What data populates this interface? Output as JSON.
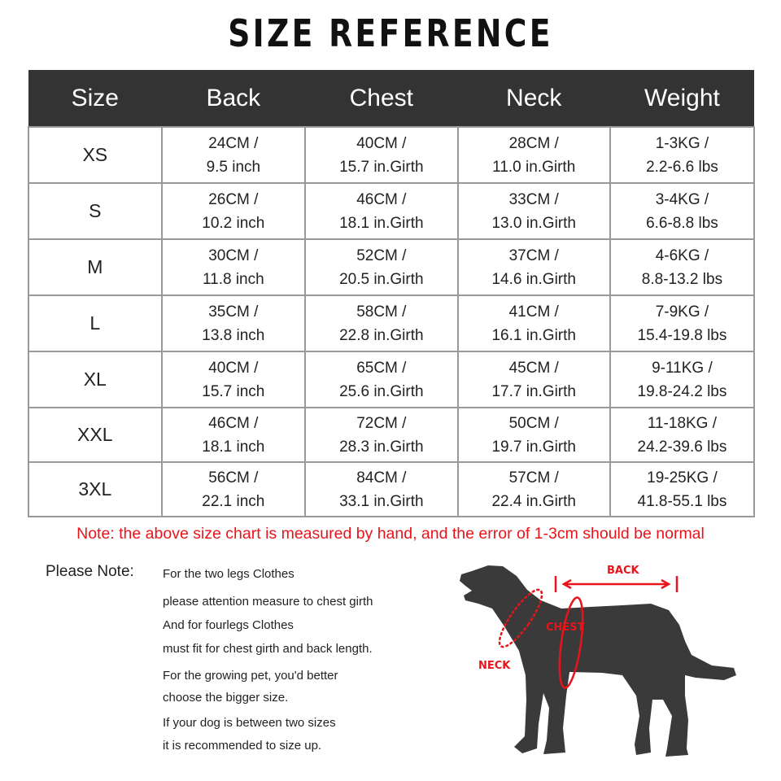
{
  "title": "SIZE REFERENCE",
  "table": {
    "headers": [
      "Size",
      "Back",
      "Chest",
      "Neck",
      "Weight"
    ],
    "rows": [
      {
        "size": "XS",
        "back": [
          "24CM /",
          "9.5 inch"
        ],
        "chest": [
          "40CM /",
          "15.7 in.Girth"
        ],
        "neck": [
          "28CM /",
          "11.0 in.Girth"
        ],
        "weight": [
          "1-3KG /",
          "2.2-6.6 lbs"
        ]
      },
      {
        "size": "S",
        "back": [
          "26CM /",
          "10.2 inch"
        ],
        "chest": [
          "46CM /",
          "18.1 in.Girth"
        ],
        "neck": [
          "33CM /",
          "13.0 in.Girth"
        ],
        "weight": [
          "3-4KG /",
          "6.6-8.8 lbs"
        ]
      },
      {
        "size": "M",
        "back": [
          "30CM /",
          "11.8 inch"
        ],
        "chest": [
          "52CM /",
          "20.5 in.Girth"
        ],
        "neck": [
          "37CM /",
          "14.6 in.Girth"
        ],
        "weight": [
          "4-6KG /",
          "8.8-13.2 lbs"
        ]
      },
      {
        "size": "L",
        "back": [
          "35CM /",
          "13.8 inch"
        ],
        "chest": [
          "58CM /",
          "22.8 in.Girth"
        ],
        "neck": [
          "41CM /",
          "16.1 in.Girth"
        ],
        "weight": [
          "7-9KG /",
          "15.4-19.8 lbs"
        ]
      },
      {
        "size": "XL",
        "back": [
          "40CM /",
          "15.7 inch"
        ],
        "chest": [
          "65CM /",
          "25.6 in.Girth"
        ],
        "neck": [
          "45CM /",
          "17.7 in.Girth"
        ],
        "weight": [
          "9-11KG /",
          "19.8-24.2 lbs"
        ]
      },
      {
        "size": "XXL",
        "back": [
          "46CM /",
          "18.1 inch"
        ],
        "chest": [
          "72CM /",
          "28.3 in.Girth"
        ],
        "neck": [
          "50CM /",
          "19.7 in.Girth"
        ],
        "weight": [
          "11-18KG /",
          "24.2-39.6 lbs"
        ]
      },
      {
        "size": "3XL",
        "back": [
          "56CM /",
          "22.1 inch"
        ],
        "chest": [
          "84CM /",
          "33.1 in.Girth"
        ],
        "neck": [
          "57CM /",
          "22.4 in.Girth"
        ],
        "weight": [
          "19-25KG /",
          "41.8-55.1 lbs"
        ]
      }
    ]
  },
  "note": "Note: the above size chart is measured by hand, and the error of 1-3cm should be normal",
  "please_note": {
    "label": "Please Note:",
    "lines": [
      "For the two legs Clothes",
      "please attention measure to chest girth",
      "And for fourlegs Clothes",
      "must fit for chest girth and back length.",
      "For the growing pet, you'd better",
      "choose the bigger size.",
      "If your dog is between two sizes",
      "it is recommended to size up."
    ]
  },
  "diagram": {
    "back": "BACK",
    "chest": "CHEST",
    "neck": "NECK"
  },
  "colors": {
    "header_bg": "#333333",
    "accent_red": "#e8141b",
    "dog": "#3a3a3a"
  }
}
